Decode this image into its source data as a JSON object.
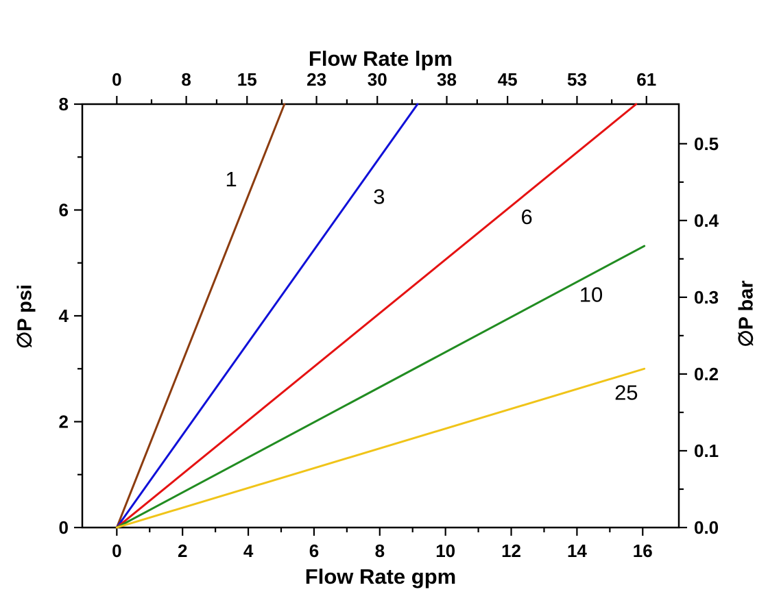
{
  "chart_data": {
    "type": "line",
    "title_top": "Flow Rate lpm",
    "xlabel_bottom": "Flow Rate gpm",
    "ylabel_left": "∅P psi",
    "ylabel_right": "∅P bar",
    "x_bottom": {
      "ticks": [
        0,
        2,
        4,
        6,
        8,
        10,
        12,
        14,
        16
      ],
      "minor_ticks": [
        1,
        3,
        5,
        7,
        9,
        11,
        13,
        15
      ],
      "range": [
        -1.05,
        17.1
      ]
    },
    "y_left": {
      "ticks": [
        0,
        2,
        4,
        6,
        8
      ],
      "minor_ticks": [
        1,
        3,
        5,
        7
      ],
      "range": [
        0,
        8
      ]
    },
    "x_top_ticks_lpm": [
      0,
      8,
      15,
      23,
      30,
      38,
      45,
      53,
      61
    ],
    "x_top_minor_ticks_lpm": [
      4,
      11.5,
      19,
      26.5,
      34,
      41.5,
      49,
      57
    ],
    "y_right_ticks_bar": [
      0.0,
      0.1,
      0.2,
      0.3,
      0.4,
      0.5
    ],
    "y_right_minor_ticks_bar": [
      0.05,
      0.15,
      0.25,
      0.35,
      0.45
    ],
    "lpm_per_gpm": 3.78541,
    "psi_per_bar": 14.5038,
    "axis_color": "#000000",
    "series": [
      {
        "name": "1",
        "color": "#8c3c0f",
        "points": [
          [
            0,
            0
          ],
          [
            5.1,
            8
          ]
        ],
        "label_pos": {
          "x": 3.48,
          "y": 6.58
        }
      },
      {
        "name": "3",
        "color": "#1010d8",
        "points": [
          [
            0,
            0
          ],
          [
            9.15,
            8
          ]
        ],
        "label_pos": {
          "x": 7.98,
          "y": 6.25
        }
      },
      {
        "name": "6",
        "color": "#e51212",
        "points": [
          [
            0,
            0
          ],
          [
            15.8,
            8
          ]
        ],
        "label_pos": {
          "x": 12.47,
          "y": 5.87
        }
      },
      {
        "name": "10",
        "color": "#218c21",
        "points": [
          [
            0,
            0
          ],
          [
            16.05,
            5.32
          ]
        ],
        "label_pos": {
          "x": 14.43,
          "y": 4.4
        }
      },
      {
        "name": "25",
        "color": "#f0c419",
        "points": [
          [
            0,
            0
          ],
          [
            16.05,
            3.0
          ]
        ],
        "label_pos": {
          "x": 15.5,
          "y": 2.55
        }
      }
    ]
  }
}
